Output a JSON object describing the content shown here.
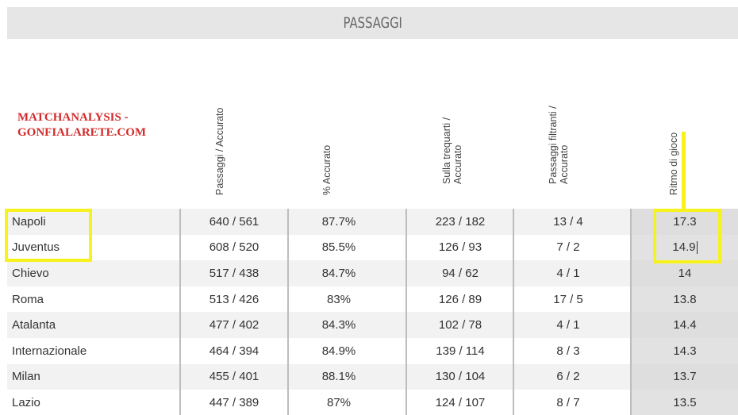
{
  "banner": {
    "title": "PASSAGGI"
  },
  "watermark": {
    "line1": "MATCHANALYSIS -",
    "line2": "GONFIALARETE.COM"
  },
  "columns": [
    {
      "label": "Passaggi / Accurato"
    },
    {
      "label": "% Accurato"
    },
    {
      "label_line1": "Sulla trequarti /",
      "label_line2": "Accurato"
    },
    {
      "label_line1": "Passaggi filtranti /",
      "label_line2": "Accurato"
    },
    {
      "label": "Ritmo di gioco"
    }
  ],
  "rows": [
    {
      "team": "Napoli",
      "passaggi": "640 / 561",
      "accurato": "87.7%",
      "trequarti": "223 / 182",
      "filtranti": "13 / 4",
      "ritmo": "17.3"
    },
    {
      "team": "Juventus",
      "passaggi": "608 / 520",
      "accurato": "85.5%",
      "trequarti": "126 / 93",
      "filtranti": "7 / 2",
      "ritmo": "14.9"
    },
    {
      "team": "Chievo",
      "passaggi": "517 / 438",
      "accurato": "84.7%",
      "trequarti": "94 / 62",
      "filtranti": "4 / 1",
      "ritmo": "14"
    },
    {
      "team": "Roma",
      "passaggi": "513 / 426",
      "accurato": "83%",
      "trequarti": "126 / 89",
      "filtranti": "17 / 5",
      "ritmo": "13.8"
    },
    {
      "team": "Atalanta",
      "passaggi": "477 / 402",
      "accurato": "84.3%",
      "trequarti": "102 / 78",
      "filtranti": "4 / 1",
      "ritmo": "14.4"
    },
    {
      "team": "Internazionale",
      "passaggi": "464 / 394",
      "accurato": "84.9%",
      "trequarti": "139 / 114",
      "filtranti": "8 / 3",
      "ritmo": "14.3"
    },
    {
      "team": "Milan",
      "passaggi": "455 / 401",
      "accurato": "88.1%",
      "trequarti": "130 / 104",
      "filtranti": "6 / 2",
      "ritmo": "13.7"
    },
    {
      "team": "Lazio",
      "passaggi": "447 / 389",
      "accurato": "87%",
      "trequarti": "124 / 107",
      "filtranti": "8 / 7",
      "ritmo": "13.5"
    }
  ],
  "colors": {
    "highlight": "#f7f21c",
    "watermark": "#d42a2a",
    "banner": "#e6e6e6"
  }
}
